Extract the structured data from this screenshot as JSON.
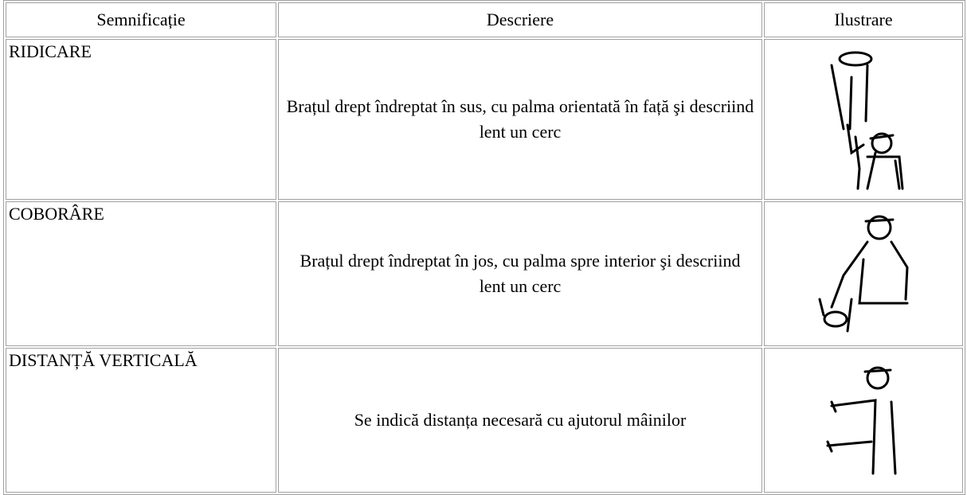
{
  "table": {
    "header": [
      "Semnificație",
      "Descriere",
      "Ilustrare"
    ],
    "rows": [
      [
        "RIDICARE",
        "Brațul drept îndreptat în sus, cu palma orientată în față şi descriind lent un cerc"
      ],
      [
        "COBORÂRE",
        "Brațul drept îndreptat în jos, cu palma spre interior şi descriind lent un cerc"
      ],
      [
        "DISTANȚĂ VERTICALĂ",
        "Se indică distanța necesară cu ajutorul mâinilor"
      ]
    ]
  }
}
